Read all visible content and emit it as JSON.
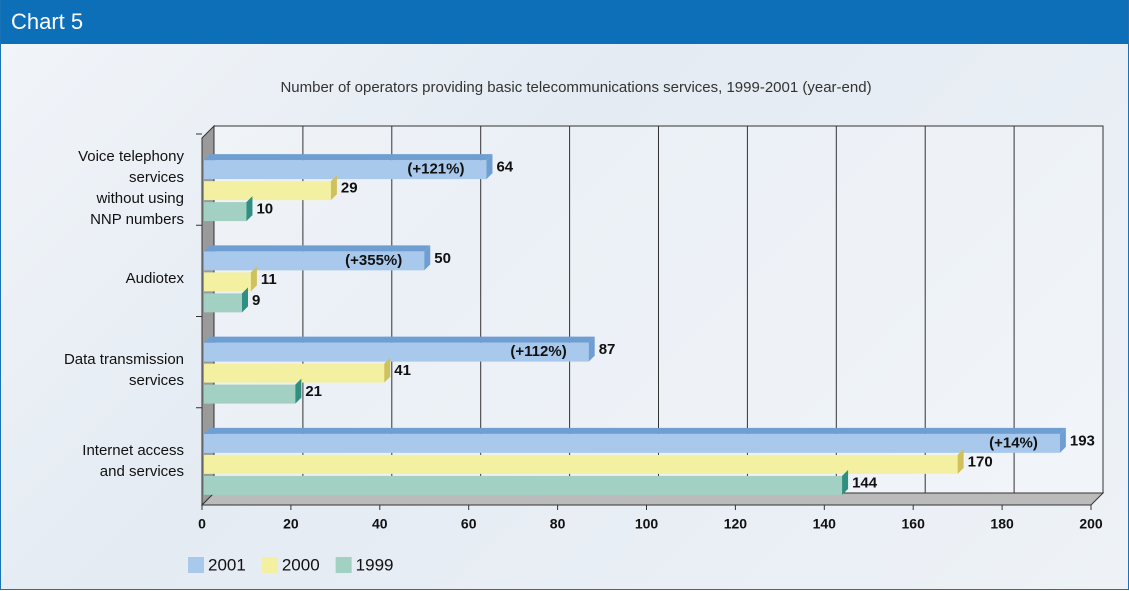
{
  "header": "Chart 5",
  "chart_data": {
    "type": "bar",
    "orientation": "horizontal",
    "title": "Number of operators providing basic telecommunications services, 1999-2001 (year-end)",
    "categories": [
      "Voice telephony\nservices\nwithout using\nNNP numbers",
      "Audiotex",
      "Data transmission\nservices",
      "Internet access\nand services"
    ],
    "series": [
      {
        "name": "2001",
        "color": "#a9c9ec",
        "values": [
          64,
          50,
          87,
          193
        ]
      },
      {
        "name": "2000",
        "color": "#f4f0a2",
        "values": [
          29,
          11,
          41,
          170
        ]
      },
      {
        "name": "1999",
        "color": "#a2d0c2",
        "values": [
          10,
          9,
          21,
          144
        ]
      }
    ],
    "annotations": [
      "(+121%)",
      "(+355%)",
      "(+112%)",
      "(+14%)"
    ],
    "xlim": [
      0,
      200
    ],
    "xticks": [
      0,
      20,
      40,
      60,
      80,
      100,
      120,
      140,
      160,
      180,
      200
    ],
    "grid": true,
    "legend": "bottom-left"
  }
}
